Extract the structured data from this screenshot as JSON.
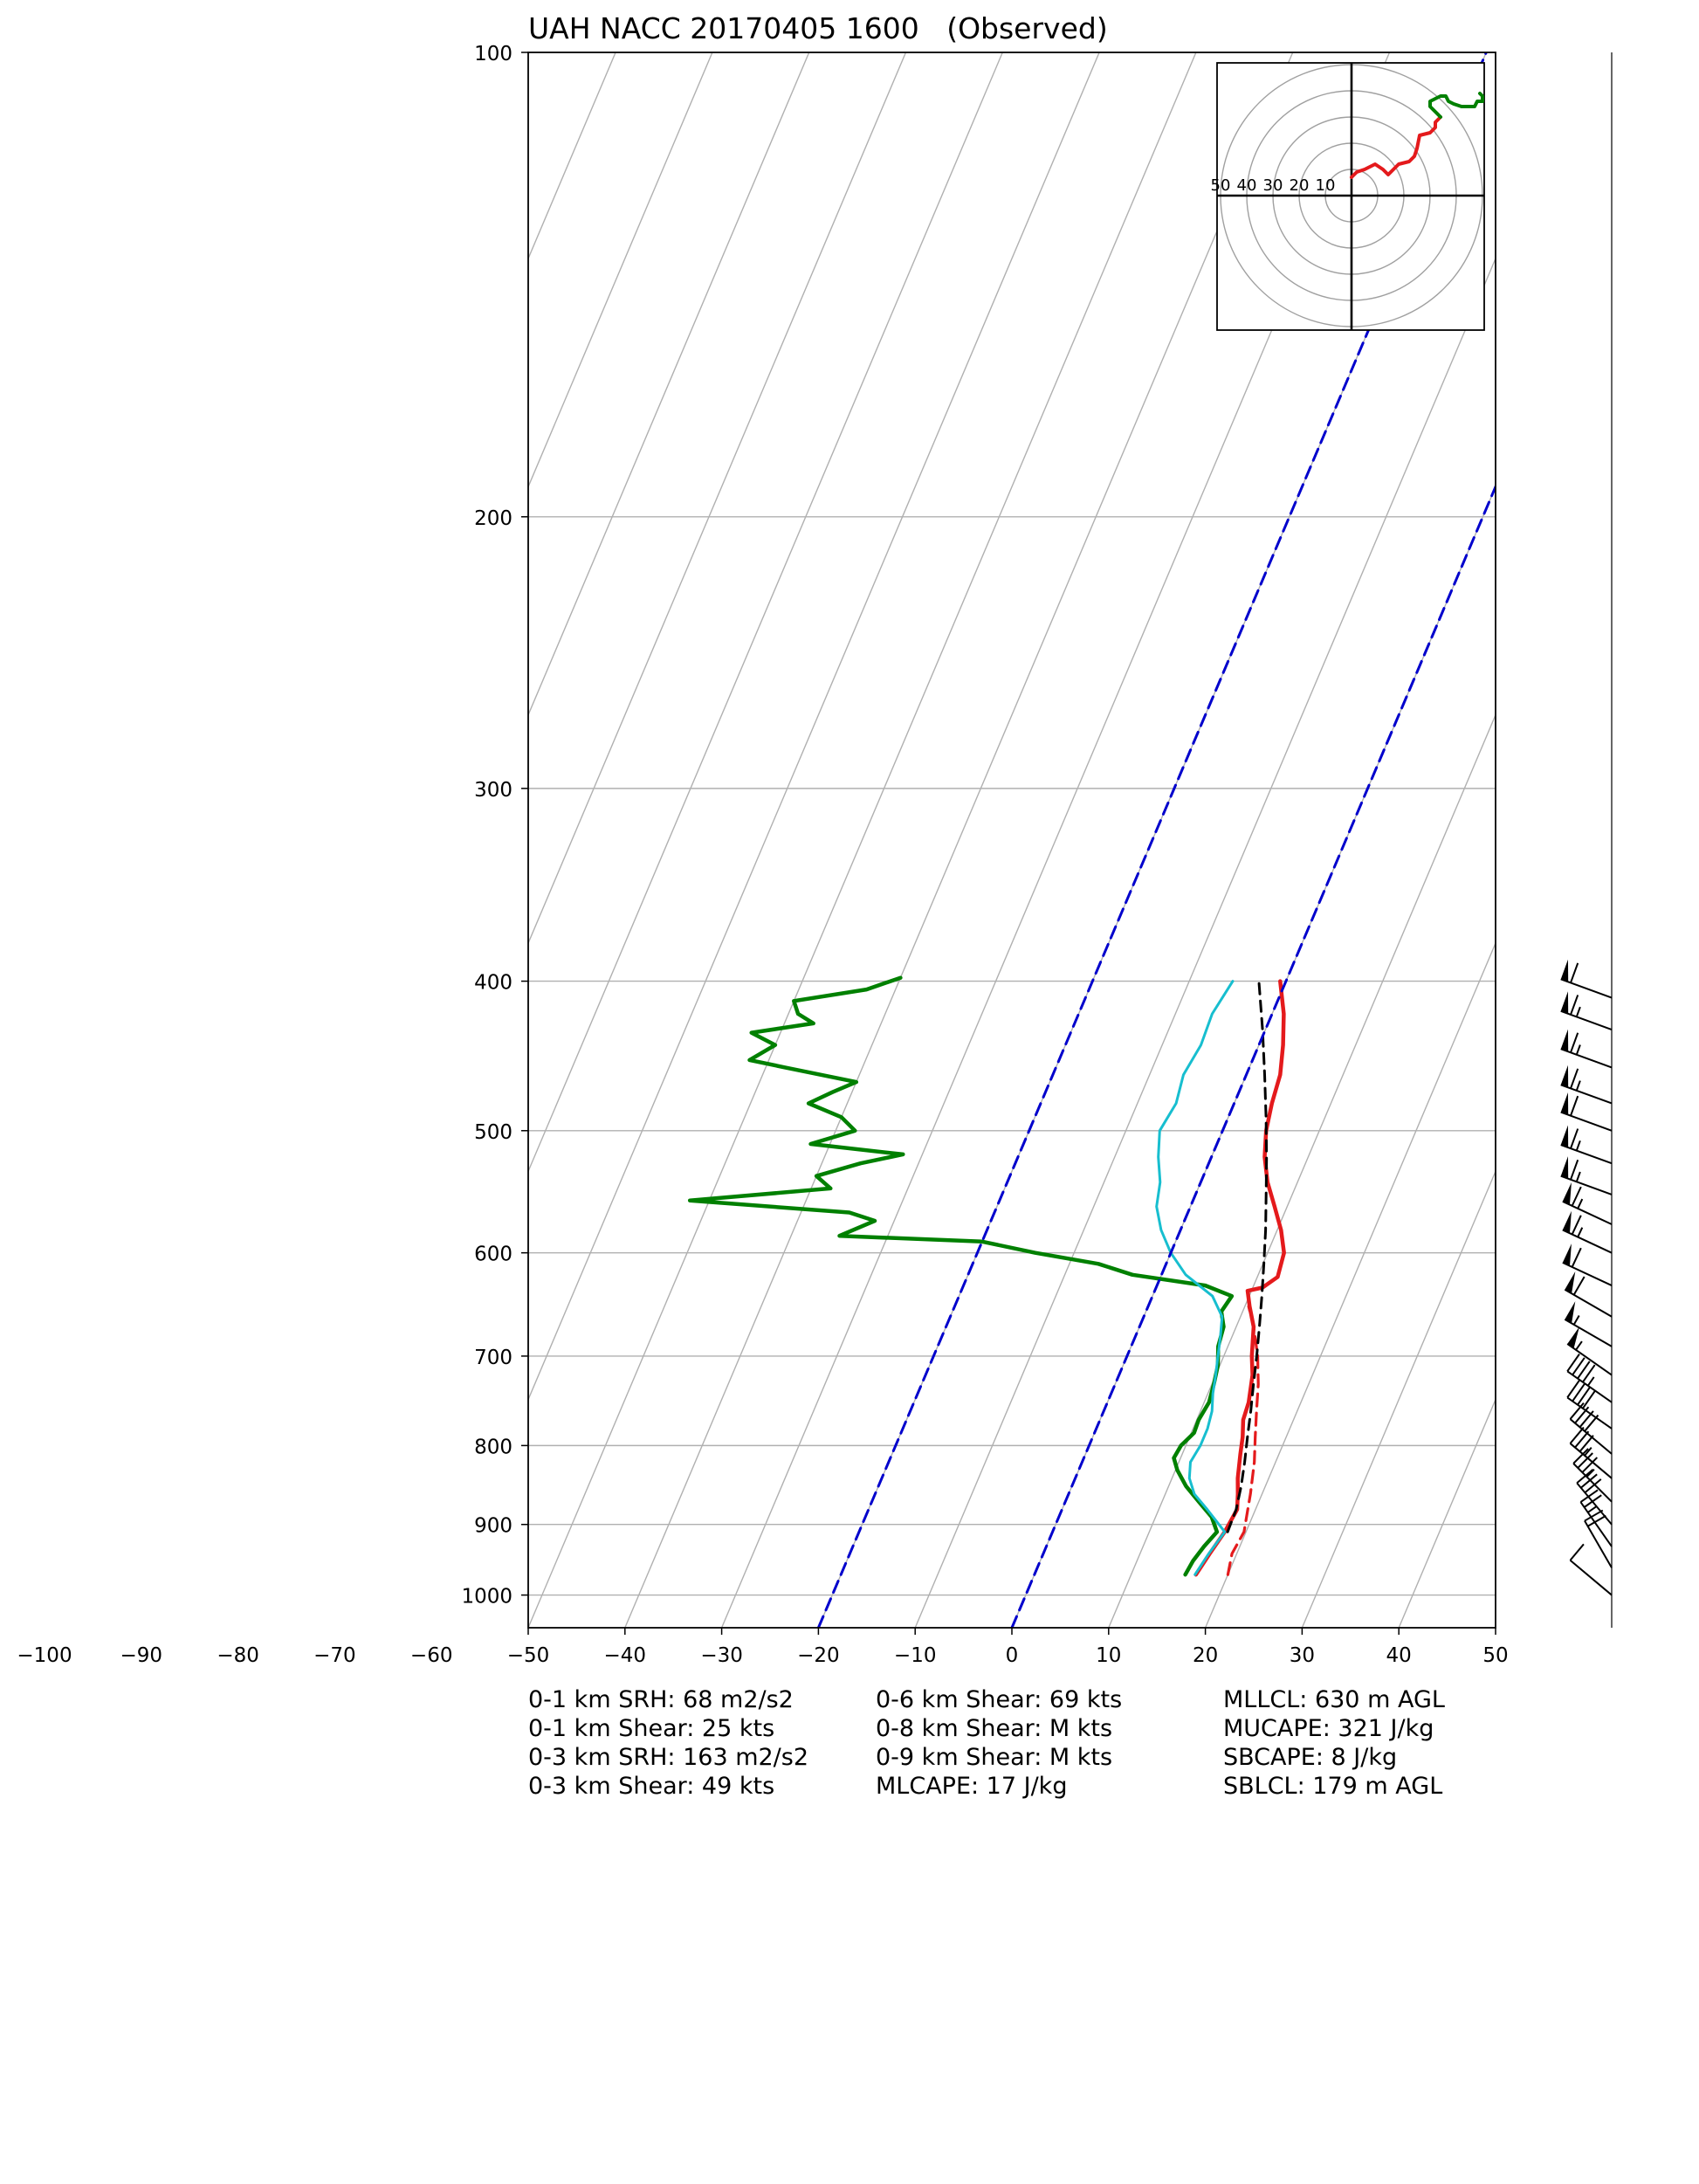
{
  "chart_data": {
    "type": "skew-t",
    "title": "UAH NACC 20170405 1600   (Observed)",
    "xlabel": "",
    "ylabel": "",
    "x_ticks": [
      -100,
      -90,
      -80,
      -70,
      -60,
      -50,
      -40,
      -30,
      -20,
      -10,
      0,
      10,
      20,
      30,
      40,
      50
    ],
    "y_ticks": [
      100,
      200,
      300,
      400,
      500,
      600,
      700,
      800,
      900,
      1000
    ],
    "xlim": [
      -50,
      50
    ],
    "ylim": [
      1050,
      100
    ],
    "y_scale": "log",
    "grid": true,
    "colors": {
      "temperature": "#e41a1c",
      "dewpoint": "#008000",
      "wetbulb": "#17becf",
      "parcel": "#000000",
      "virtual_temperature": "#e41a1c",
      "isotherm_highlight": "#0000cc",
      "grid": "#b0b0b0"
    },
    "series": [
      {
        "key": "temperature",
        "points": [
          [
            16.7,
            970
          ],
          [
            17.2,
            940
          ],
          [
            17.8,
            910
          ],
          [
            18.1,
            880
          ],
          [
            17.5,
            860
          ],
          [
            16.8,
            840
          ],
          [
            16.0,
            810
          ],
          [
            15.5,
            790
          ],
          [
            14.8,
            770
          ],
          [
            14.6,
            750
          ],
          [
            13.8,
            720
          ],
          [
            12.9,
            700
          ],
          [
            11.8,
            670
          ],
          [
            10.5,
            650
          ],
          [
            9.6,
            635
          ],
          [
            11.0,
            632
          ],
          [
            12.1,
            622
          ],
          [
            11.7,
            600
          ],
          [
            10.4,
            580
          ],
          [
            8.7,
            560
          ],
          [
            6.9,
            540
          ],
          [
            5.5,
            520
          ],
          [
            4.5,
            500
          ],
          [
            3.9,
            480
          ],
          [
            3.5,
            460
          ],
          [
            2.5,
            440
          ],
          [
            1.2,
            420
          ],
          [
            -0.6,
            400
          ]
        ]
      },
      {
        "key": "virtual_temperature",
        "points": [
          [
            20.0,
            970
          ],
          [
            19.5,
            940
          ],
          [
            19.8,
            910
          ],
          [
            19.2,
            880
          ],
          [
            18.8,
            860
          ],
          [
            17.8,
            820
          ],
          [
            16.8,
            790
          ],
          [
            15.8,
            760
          ],
          [
            14.8,
            730
          ],
          [
            13.5,
            700
          ],
          [
            11.8,
            670
          ],
          [
            10.4,
            650
          ]
        ]
      },
      {
        "key": "dewpoint",
        "points": [
          [
            15.6,
            970
          ],
          [
            15.8,
            950
          ],
          [
            16.3,
            930
          ],
          [
            17.0,
            910
          ],
          [
            15.8,
            890
          ],
          [
            13.8,
            870
          ],
          [
            11.8,
            850
          ],
          [
            10.2,
            830
          ],
          [
            9.3,
            815
          ],
          [
            9.5,
            800
          ],
          [
            10.3,
            785
          ],
          [
            10.2,
            770
          ],
          [
            10.5,
            750
          ],
          [
            10.2,
            730
          ],
          [
            9.8,
            710
          ],
          [
            9.0,
            690
          ],
          [
            8.7,
            670
          ],
          [
            7.8,
            655
          ],
          [
            8.2,
            640
          ],
          [
            5.0,
            630
          ],
          [
            -3.0,
            620
          ],
          [
            -7.0,
            610
          ],
          [
            -14.0,
            600
          ],
          [
            -20.0,
            590
          ],
          [
            -35.0,
            585
          ],
          [
            -32.0,
            572
          ],
          [
            -35.0,
            565
          ],
          [
            -52.0,
            555
          ],
          [
            -38.0,
            545
          ],
          [
            -40.0,
            535
          ],
          [
            -36.0,
            525
          ],
          [
            -32.0,
            518
          ],
          [
            -42.0,
            510
          ],
          [
            -38.0,
            500
          ],
          [
            -40.0,
            490
          ],
          [
            -44.0,
            480
          ],
          [
            -42.0,
            472
          ],
          [
            -40.0,
            465
          ],
          [
            -48.0,
            455
          ],
          [
            -52.0,
            450
          ],
          [
            -50.0,
            440
          ],
          [
            -53.0,
            432
          ],
          [
            -47.0,
            426
          ],
          [
            -49.0,
            420
          ],
          [
            -50.0,
            412
          ],
          [
            -43.0,
            405
          ],
          [
            -40.0,
            398
          ]
        ]
      },
      {
        "key": "wetbulb",
        "points": [
          [
            16.6,
            970
          ],
          [
            17.1,
            940
          ],
          [
            17.8,
            910
          ],
          [
            15.0,
            880
          ],
          [
            13.0,
            860
          ],
          [
            11.8,
            840
          ],
          [
            11.2,
            820
          ],
          [
            11.5,
            800
          ],
          [
            11.5,
            780
          ],
          [
            11.2,
            760
          ],
          [
            10.5,
            740
          ],
          [
            10.0,
            720
          ],
          [
            9.4,
            700
          ],
          [
            8.8,
            680
          ],
          [
            8.1,
            660
          ],
          [
            6.2,
            640
          ],
          [
            2.5,
            620
          ],
          [
            0.0,
            600
          ],
          [
            -2.0,
            580
          ],
          [
            -3.5,
            560
          ],
          [
            -4.2,
            540
          ],
          [
            -5.5,
            520
          ],
          [
            -6.5,
            500
          ],
          [
            -6.0,
            480
          ],
          [
            -6.5,
            460
          ],
          [
            -6.0,
            440
          ],
          [
            -6.2,
            420
          ],
          [
            -5.5,
            400
          ]
        ]
      },
      {
        "key": "parcel",
        "points": [
          [
            18.1,
            910
          ],
          [
            18.0,
            880
          ],
          [
            17.5,
            850
          ],
          [
            16.8,
            820
          ],
          [
            16.0,
            790
          ],
          [
            15.2,
            760
          ],
          [
            14.3,
            730
          ],
          [
            13.4,
            700
          ],
          [
            12.4,
            670
          ],
          [
            11.3,
            640
          ],
          [
            10.1,
            610
          ],
          [
            8.8,
            580
          ],
          [
            7.3,
            550
          ],
          [
            5.7,
            520
          ],
          [
            3.9,
            490
          ],
          [
            1.9,
            460
          ],
          [
            -0.3,
            430
          ],
          [
            -2.8,
            400
          ]
        ]
      },
      {
        "key": "isotherm_highlight",
        "points": [
          [
            -20.0,
            1050
          ],
          [
            -20.0,
            100
          ]
        ]
      },
      {
        "key": "isotherm_highlight",
        "points": [
          [
            0.0,
            1050
          ],
          [
            0.0,
            100
          ]
        ]
      }
    ],
    "wind_barbs": [
      [
        1000,
        230,
        10
      ],
      [
        960,
        210,
        20
      ],
      [
        930,
        215,
        25
      ],
      [
        900,
        220,
        30
      ],
      [
        870,
        225,
        35
      ],
      [
        840,
        230,
        35
      ],
      [
        810,
        230,
        40
      ],
      [
        780,
        235,
        40
      ],
      [
        750,
        235,
        45
      ],
      [
        720,
        235,
        55
      ],
      [
        690,
        240,
        55
      ],
      [
        660,
        240,
        60
      ],
      [
        630,
        245,
        60
      ],
      [
        600,
        245,
        65
      ],
      [
        575,
        245,
        65
      ],
      [
        550,
        250,
        65
      ],
      [
        525,
        250,
        65
      ],
      [
        500,
        250,
        60
      ],
      [
        480,
        250,
        65
      ],
      [
        455,
        250,
        65
      ],
      [
        430,
        250,
        65
      ],
      [
        410,
        250,
        60
      ]
    ],
    "hodograph": {
      "ring_labels": [
        "50",
        "40",
        "30",
        "20",
        "10"
      ],
      "rings": [
        10,
        20,
        30,
        40,
        50
      ],
      "segments": [
        {
          "color": "#e41a1c",
          "points": [
            [
              0,
              7
            ],
            [
              2,
              9
            ],
            [
              5,
              10
            ],
            [
              7,
              11
            ],
            [
              9,
              12
            ],
            [
              12,
              10
            ],
            [
              14,
              8
            ],
            [
              16,
              10
            ],
            [
              18,
              12
            ],
            [
              22,
              13
            ],
            [
              24,
              15
            ],
            [
              25,
              18
            ],
            [
              26,
              23
            ],
            [
              30,
              24
            ],
            [
              32,
              26
            ],
            [
              32,
              28
            ],
            [
              34,
              30
            ]
          ]
        },
        {
          "color": "#008000",
          "points": [
            [
              34,
              30
            ],
            [
              32,
              32
            ],
            [
              30,
              34
            ],
            [
              30,
              36
            ],
            [
              32,
              37
            ],
            [
              34,
              38
            ],
            [
              36,
              38
            ],
            [
              37,
              36
            ],
            [
              39,
              35
            ],
            [
              42,
              34
            ],
            [
              44,
              34
            ],
            [
              47,
              34
            ],
            [
              48,
              36
            ],
            [
              50,
              36
            ],
            [
              50,
              38
            ],
            [
              49,
              39
            ]
          ]
        }
      ]
    }
  },
  "stats": [
    [
      "0-1 km SRH: 68 m2/s2",
      "0-6 km Shear: 69 kts",
      "MLLCL: 630 m AGL"
    ],
    [
      "0-1 km Shear: 25 kts",
      "0-8 km Shear: M kts",
      "MUCAPE: 321 J/kg"
    ],
    [
      "0-3 km SRH: 163 m2/s2",
      "0-9 km Shear: M kts",
      "SBCAPE: 8 J/kg"
    ],
    [
      "0-3 km Shear: 49 kts",
      "MLCAPE: 17 J/kg",
      "SBLCL: 179 m AGL"
    ]
  ]
}
